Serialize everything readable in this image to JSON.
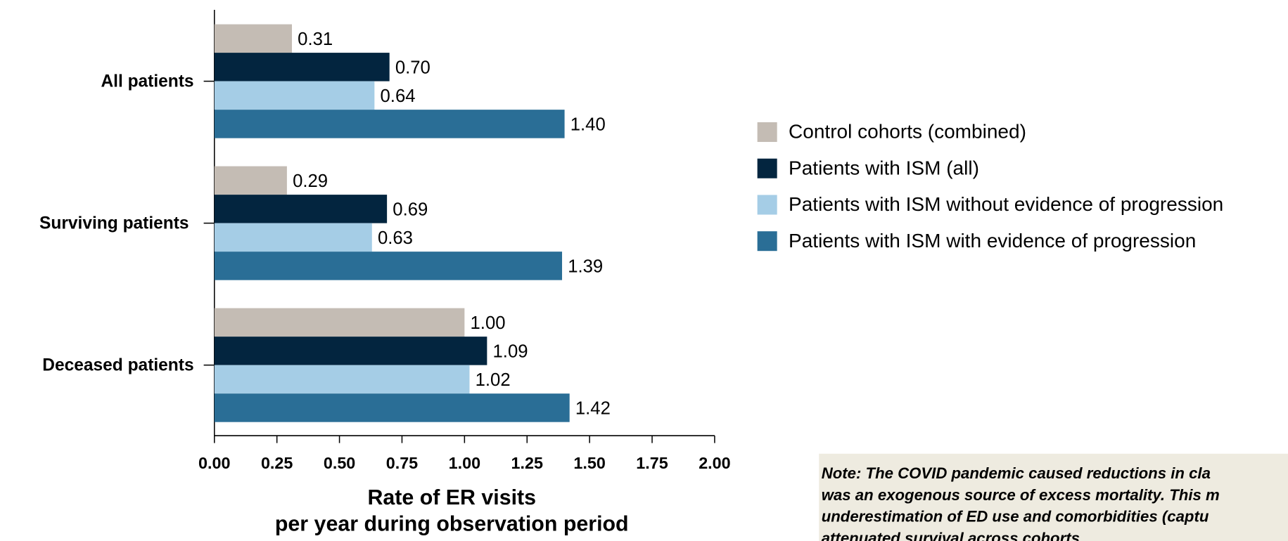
{
  "chart_data": {
    "type": "bar",
    "orientation": "horizontal",
    "categories": [
      "All patients",
      "Surviving patients",
      "Deceased patients"
    ],
    "series": [
      {
        "name": "Control cohorts (combined)",
        "color": "#c4bcb4",
        "values": [
          0.31,
          0.29,
          1.0
        ],
        "value_labels": [
          "0.31",
          "0.29",
          "1.00"
        ]
      },
      {
        "name": "Patients with ISM (all)",
        "color": "#03253f",
        "values": [
          0.7,
          0.69,
          1.09
        ],
        "value_labels": [
          "0.70",
          "0.69",
          "1.09"
        ]
      },
      {
        "name": "Patients with ISM without evidence of progression",
        "color": "#a5cde6",
        "values": [
          0.64,
          0.63,
          1.02
        ],
        "value_labels": [
          "0.64",
          "0.63",
          "1.02"
        ]
      },
      {
        "name": "Patients with ISM with evidence of progression",
        "color": "#2a6e96",
        "values": [
          1.4,
          1.39,
          1.42
        ],
        "value_labels": [
          "1.40",
          "1.39",
          "1.42"
        ]
      }
    ],
    "xlim": [
      0,
      2
    ],
    "xticks": [
      {
        "value": 0,
        "label": "0.00"
      },
      {
        "value": 0.25,
        "label": "0.25"
      },
      {
        "value": 0.5,
        "label": "0.50"
      },
      {
        "value": 0.75,
        "label": "0.75"
      },
      {
        "value": 1,
        "label": "1.00"
      },
      {
        "value": 1.25,
        "label": "1.25"
      },
      {
        "value": 1.5,
        "label": "1.50"
      },
      {
        "value": 1.75,
        "label": "1.75"
      },
      {
        "value": 2,
        "label": "2.00"
      }
    ],
    "xlabel": [
      "Rate of ER visits",
      "per year during observation period"
    ],
    "legend_position": "right"
  },
  "note": {
    "lines": [
      "Note: The COVID pandemic caused reductions in cla",
      "was an exogenous source of excess mortality. This m",
      "underestimation of ED use and comorbidities (captu",
      "attenuated survival across cohorts"
    ]
  }
}
